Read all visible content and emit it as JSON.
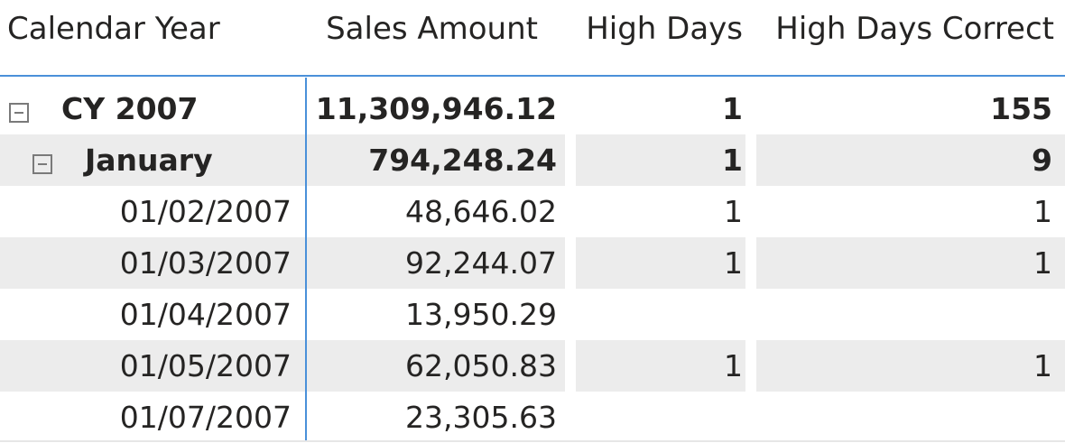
{
  "matrix": {
    "columns": {
      "calendar_year": "Calendar Year",
      "sales_amount": "Sales Amount",
      "high_days": "High Days",
      "high_days_correct": "High Days Correct"
    },
    "year_row": {
      "label": "CY 2007",
      "sales_amount": "11,309,946.12",
      "high_days": "1",
      "high_days_correct": "155",
      "expander_icon": "collapse-minus"
    },
    "month_row": {
      "label": "January",
      "sales_amount": "794,248.24",
      "high_days": "1",
      "high_days_correct": "9",
      "expander_icon": "collapse-minus"
    },
    "day_rows": [
      {
        "date": "01/02/2007",
        "sales_amount": "48,646.02",
        "high_days": "1",
        "high_days_correct": "1"
      },
      {
        "date": "01/03/2007",
        "sales_amount": "92,244.07",
        "high_days": "1",
        "high_days_correct": "1"
      },
      {
        "date": "01/04/2007",
        "sales_amount": "13,950.29",
        "high_days": "",
        "high_days_correct": ""
      },
      {
        "date": "01/05/2007",
        "sales_amount": "62,050.83",
        "high_days": "1",
        "high_days_correct": "1"
      },
      {
        "date": "01/07/2007",
        "sales_amount": "23,305.63",
        "high_days": "",
        "high_days_correct": ""
      }
    ],
    "colors": {
      "accent": "#4a90d9",
      "band": "#ececec",
      "text": "#252423"
    }
  }
}
